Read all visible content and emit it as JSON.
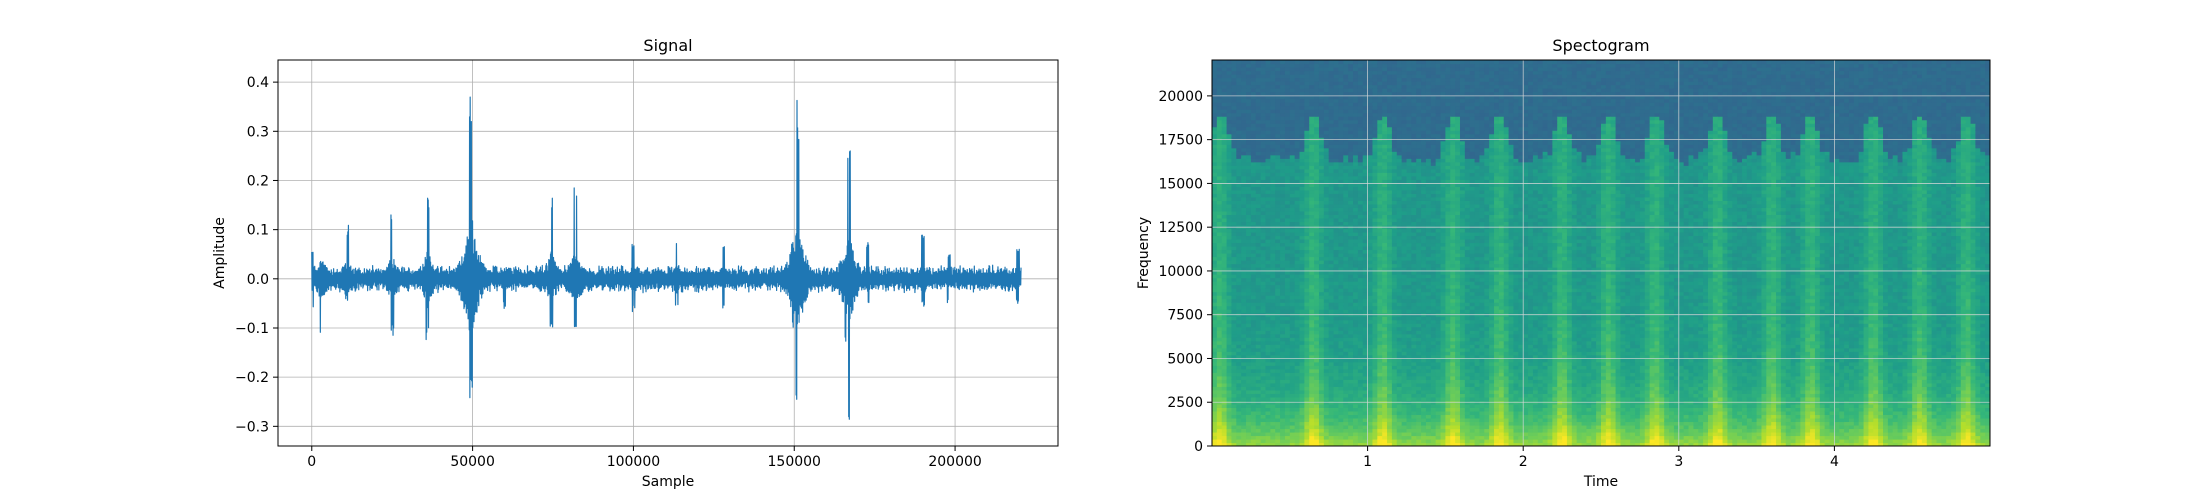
{
  "chart_data": [
    {
      "type": "line",
      "title": "Signal",
      "xlabel": "Sample",
      "ylabel": "Amplitude",
      "xlim": [
        -10500,
        232000
      ],
      "ylim": [
        -0.34,
        0.445
      ],
      "grid": true,
      "line_color": "#1f77b4",
      "x_ticks": [
        0,
        50000,
        100000,
        150000,
        200000
      ],
      "x_tick_labels": [
        "0",
        "50000",
        "100000",
        "150000",
        "200000"
      ],
      "y_ticks": [
        -0.3,
        -0.2,
        -0.1,
        0.0,
        0.1,
        0.2,
        0.3,
        0.4
      ],
      "y_tick_labels": [
        "−0.3",
        "−0.2",
        "−0.1",
        "0.0",
        "0.1",
        "0.2",
        "0.3",
        "0.4"
      ],
      "x_max": 220500,
      "base_amplitude": 0.02,
      "transients": [
        {
          "x": 0,
          "peak": 0.06,
          "trough": -0.06
        },
        {
          "x": 3000,
          "peak": 0.04,
          "trough": -0.135
        },
        {
          "x": 11000,
          "peak": 0.115,
          "trough": -0.05
        },
        {
          "x": 25000,
          "peak": 0.14,
          "trough": -0.115
        },
        {
          "x": 36000,
          "peak": 0.175,
          "trough": -0.125
        },
        {
          "x": 49500,
          "peak": 0.415,
          "trough": -0.25
        },
        {
          "x": 60000,
          "peak": 0.075,
          "trough": -0.06
        },
        {
          "x": 74500,
          "peak": 0.165,
          "trough": -0.105
        },
        {
          "x": 82000,
          "peak": 0.19,
          "trough": -0.1
        },
        {
          "x": 100000,
          "peak": 0.07,
          "trough": -0.07
        },
        {
          "x": 113500,
          "peak": 0.09,
          "trough": -0.06
        },
        {
          "x": 128000,
          "peak": 0.075,
          "trough": -0.065
        },
        {
          "x": 149500,
          "peak": 0.09,
          "trough": -0.11
        },
        {
          "x": 151000,
          "peak": 0.365,
          "trough": -0.265
        },
        {
          "x": 166000,
          "peak": 0.05,
          "trough": -0.14
        },
        {
          "x": 167000,
          "peak": 0.295,
          "trough": -0.3
        },
        {
          "x": 173000,
          "peak": 0.075,
          "trough": -0.06
        },
        {
          "x": 190000,
          "peak": 0.1,
          "trough": -0.06
        },
        {
          "x": 198000,
          "peak": 0.05,
          "trough": -0.05
        },
        {
          "x": 219500,
          "peak": 0.06,
          "trough": -0.05
        }
      ]
    },
    {
      "type": "heatmap",
      "title": "Spectogram",
      "xlabel": "Time",
      "ylabel": "Frequency",
      "xlim": [
        0,
        5.0
      ],
      "ylim": [
        0,
        22050
      ],
      "grid": true,
      "x_ticks": [
        1,
        2,
        3,
        4
      ],
      "x_tick_labels": [
        "1",
        "2",
        "3",
        "4"
      ],
      "y_ticks": [
        0,
        2500,
        5000,
        7500,
        10000,
        12500,
        15000,
        17500,
        20000
      ],
      "y_tick_labels": [
        "0",
        "2500",
        "5000",
        "7500",
        "10000",
        "12500",
        "15000",
        "17500",
        "20000"
      ],
      "colormap": "viridis",
      "cutoff_frequency_low": 16100,
      "cutoff_frequency_high": 18800,
      "loud_times": [
        0.05,
        0.65,
        1.1,
        1.55,
        1.85,
        2.25,
        2.55,
        2.85,
        3.25,
        3.6,
        3.85,
        4.25,
        4.55,
        4.85
      ]
    }
  ]
}
